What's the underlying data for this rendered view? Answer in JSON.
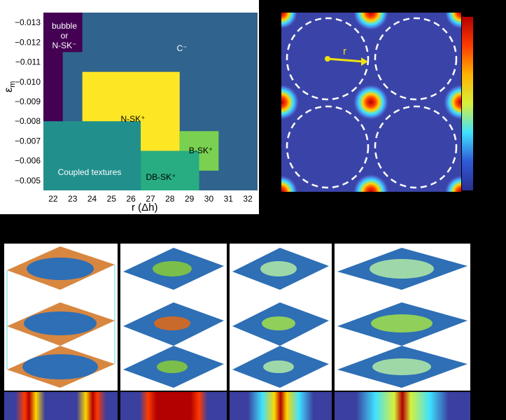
{
  "phase_diagram": {
    "y_axis_label_main": "ε",
    "y_axis_label_sub": "m",
    "x_axis_label": "r (Δh)",
    "x_ticks": [
      "22",
      "23",
      "24",
      "25",
      "26",
      "27",
      "28",
      "29",
      "30",
      "31",
      "32"
    ],
    "y_ticks": [
      "−0.013",
      "−0.012",
      "−0.011",
      "−0.010",
      "−0.009",
      "−0.008",
      "−0.007",
      "−0.006",
      "−0.005"
    ],
    "regions": {
      "bubble": [
        "bubble",
        "or",
        "N-SK⁻"
      ],
      "c_minus": "C⁻",
      "n_sk_plus": "N-SK⁺",
      "b_sk_plus": "B-SK⁺",
      "db_sk_plus": "DB-SK⁺",
      "coupled": "Coupled textures"
    },
    "colors": {
      "purple": "#440154",
      "blue": "#30638d",
      "teal": "#21908d",
      "green": "#5cc863",
      "lightgreen": "#7ad151",
      "yellow": "#fde725",
      "db": "#27ad81"
    }
  },
  "lattice_panel": {
    "vector_label": "r"
  },
  "chart_data": {
    "type": "heatmap",
    "xlabel": "r (Δh)",
    "ylabel": "εm",
    "x_range": [
      21.5,
      32.5
    ],
    "y_range": [
      -0.0135,
      -0.0045
    ],
    "regions": [
      {
        "name": "bubble or N-SK⁻",
        "r": [
          21.5,
          23.5
        ],
        "eps": [
          -0.0135,
          -0.0115
        ]
      },
      {
        "name": "bubble or N-SK⁻",
        "r": [
          21.5,
          22.5
        ],
        "eps": [
          -0.0115,
          -0.0065
        ]
      },
      {
        "name": "C⁻",
        "r": [
          22.5,
          32.5
        ],
        "eps": [
          -0.0115,
          -0.0045
        ]
      },
      {
        "name": "N-SK⁺",
        "r": [
          23.5,
          28.5
        ],
        "eps": [
          -0.0105,
          -0.0065
        ]
      },
      {
        "name": "B-SK⁺",
        "r": [
          28.5,
          30.5
        ],
        "eps": [
          -0.0075,
          -0.0055
        ]
      },
      {
        "name": "DB-SK⁺",
        "r": [
          26.5,
          29.5
        ],
        "eps": [
          -0.0065,
          -0.0045
        ]
      },
      {
        "name": "Coupled textures",
        "r": [
          21.5,
          26.5
        ],
        "eps": [
          -0.008,
          -0.0045
        ]
      }
    ]
  }
}
